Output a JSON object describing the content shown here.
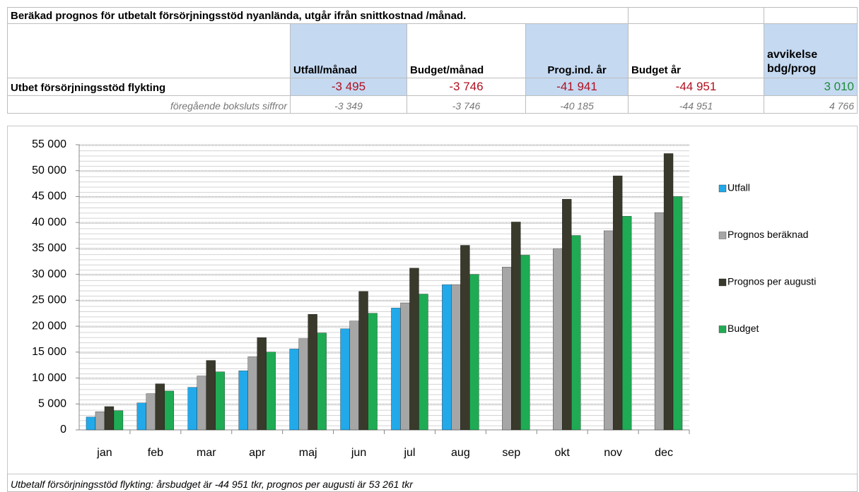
{
  "table": {
    "title": "Beräkad prognos för utbetalt försörjningsstöd nyanlända, utgår ifrån snittkostnad /månad.",
    "headers": [
      "Utfall/månad",
      "Budget/månad",
      "Prog.ind. år",
      "Budget år",
      "avvikelse bdg/prog"
    ],
    "rows": [
      [
        "Utbet försörjningsstöd flykting",
        "-3 495",
        "-3 746",
        "-41 941",
        "-44 951",
        "3 010"
      ],
      [
        "föregående boksluts siffror",
        "-3 349",
        "-3 746",
        "-40 185",
        "-44 951",
        "4 766"
      ]
    ]
  },
  "chart_data": {
    "type": "bar",
    "categories": [
      "jan",
      "feb",
      "mar",
      "apr",
      "maj",
      "jun",
      "jul",
      "aug",
      "sep",
      "okt",
      "nov",
      "dec"
    ],
    "series": [
      {
        "name": "Utfall",
        "color": "#22a9ea",
        "values": [
          2500,
          5200,
          8200,
          11400,
          15600,
          19500,
          23500,
          28000,
          null,
          null,
          null,
          null
        ]
      },
      {
        "name": "Prognos beräknad",
        "color": "#a6a6a6",
        "values": [
          3500,
          7000,
          10400,
          14100,
          17600,
          21000,
          24500,
          28000,
          31400,
          34900,
          38400,
          41900
        ]
      },
      {
        "name": "Prognos per augusti",
        "color": "#3a3a2c",
        "values": [
          4500,
          8900,
          13400,
          17800,
          22300,
          26700,
          31200,
          35600,
          40100,
          44500,
          49000,
          53300
        ]
      },
      {
        "name": "Budget",
        "color": "#1fab54",
        "values": [
          3700,
          7500,
          11200,
          15000,
          18700,
          22500,
          26200,
          30000,
          33700,
          37500,
          41200,
          45000
        ]
      }
    ],
    "ylim": [
      0,
      55000
    ],
    "yticks": [
      0,
      {
        "value": 5000,
        "label": "5 000"
      },
      {
        "value": 10000,
        "label": "10 000"
      },
      {
        "value": 15000,
        "label": "15 000"
      },
      {
        "value": 20000,
        "label": "20 000"
      },
      {
        "value": 25000,
        "label": "25 000"
      },
      {
        "value": 30000,
        "label": "30 000"
      },
      {
        "value": 35000,
        "label": "35 000"
      },
      {
        "value": 40000,
        "label": "40 000"
      },
      {
        "value": 45000,
        "label": "45 000"
      },
      {
        "value": 50000,
        "label": "50 000"
      },
      {
        "value": 55000,
        "label": "55 000"
      }
    ],
    "grid": true,
    "legend": "right"
  },
  "footnote": "Utbetalf försörjningsstöd flykting: årsbudget är -44 951 tkr, prognos per augusti är 53 261 tkr"
}
